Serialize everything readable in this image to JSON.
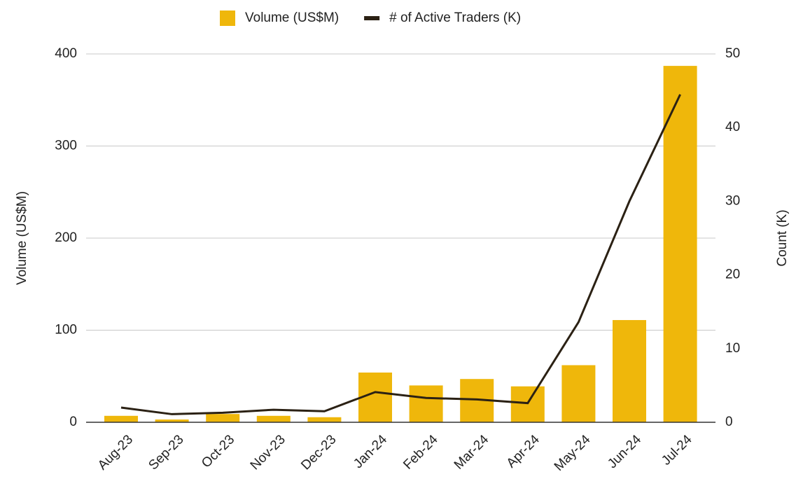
{
  "chart_data": {
    "type": "bar",
    "categories": [
      "Aug-23",
      "Sep-23",
      "Oct-23",
      "Nov-23",
      "Dec-23",
      "Jan-24",
      "Feb-24",
      "Mar-24",
      "Apr-24",
      "May-24",
      "Jun-24",
      "Jul-24"
    ],
    "series": [
      {
        "name": "Volume (US$M)",
        "type": "bar",
        "color": "#efb70b",
        "values": [
          7,
          3,
          9,
          7,
          5.5,
          54,
          40,
          47,
          39,
          62,
          111,
          387
        ]
      },
      {
        "name": "# of Active Traders (K)",
        "type": "line",
        "axis": "y2",
        "color": "#2b2114",
        "values": [
          2.0,
          1.1,
          1.3,
          1.7,
          1.5,
          4.1,
          3.3,
          3.1,
          2.6,
          13.6,
          30,
          44.5
        ]
      }
    ],
    "y_label": "Volume (US$M)",
    "y2_label": "Count (K)",
    "ylim": [
      0,
      400
    ],
    "yticks": [
      0,
      100,
      200,
      300,
      400
    ],
    "y2lim": [
      0,
      50
    ],
    "y2ticks": [
      0,
      10,
      20,
      30,
      40,
      50
    ],
    "grid": true,
    "legend": "top"
  }
}
